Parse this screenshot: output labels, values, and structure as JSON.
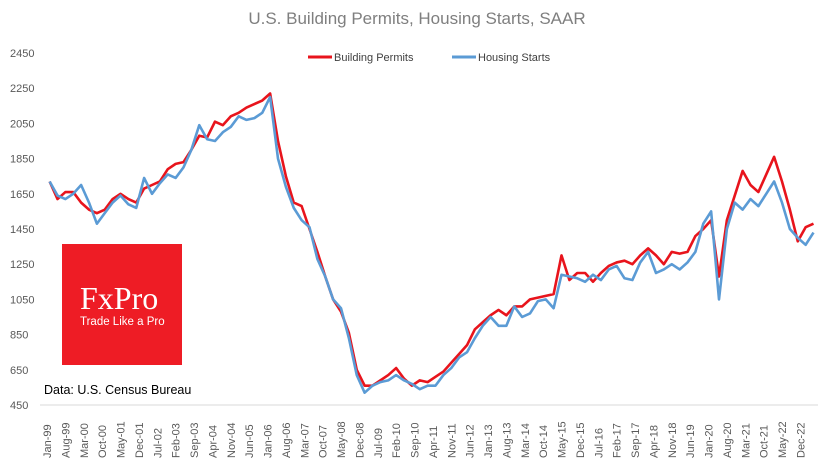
{
  "chart_data": {
    "type": "line",
    "title": "U.S. Building Permits, Housing Starts, SAAR",
    "xlabel": "",
    "ylabel": "",
    "ylim": [
      450,
      2450
    ],
    "yticks": [
      450,
      650,
      850,
      1050,
      1250,
      1450,
      1650,
      1850,
      2050,
      2250,
      2450
    ],
    "xtick_labels": [
      "Jan-99",
      "Aug-99",
      "Mar-00",
      "Oct-00",
      "May-01",
      "Dec-01",
      "Jul-02",
      "Feb-03",
      "Sep-03",
      "Apr-04",
      "Nov-04",
      "Jun-05",
      "Jan-06",
      "Aug-06",
      "Mar-07",
      "Oct-07",
      "May-08",
      "Dec-08",
      "Jul-09",
      "Feb-10",
      "Sep-10",
      "Apr-11",
      "Nov-11",
      "Jun-12",
      "Jan-13",
      "Aug-13",
      "Mar-14",
      "Oct-14",
      "May-15",
      "Dec-15",
      "Jul-16",
      "Feb-17",
      "Sep-17",
      "Apr-18",
      "Nov-18",
      "Jun-19",
      "Jan-20",
      "Aug-20",
      "Mar-21",
      "Oct-21",
      "May-22",
      "Dec-22"
    ],
    "x_start": "Jan-99",
    "x_frequency": "quarterly",
    "legend": "top-center",
    "grid": false,
    "series": [
      {
        "name": "Building Permits",
        "color": "#e8141c",
        "values": [
          1720,
          1620,
          1660,
          1660,
          1600,
          1560,
          1540,
          1560,
          1620,
          1650,
          1620,
          1600,
          1680,
          1700,
          1720,
          1790,
          1820,
          1830,
          1900,
          1980,
          1970,
          2060,
          2040,
          2090,
          2110,
          2140,
          2160,
          2180,
          2220,
          1950,
          1750,
          1600,
          1580,
          1450,
          1320,
          1180,
          1050,
          980,
          860,
          650,
          560,
          560,
          590,
          620,
          660,
          600,
          560,
          590,
          580,
          610,
          640,
          690,
          740,
          790,
          880,
          920,
          960,
          990,
          960,
          1010,
          1010,
          1050,
          1060,
          1070,
          1080,
          1300,
          1160,
          1200,
          1200,
          1150,
          1200,
          1240,
          1260,
          1270,
          1250,
          1300,
          1340,
          1300,
          1250,
          1320,
          1310,
          1320,
          1410,
          1450,
          1500,
          1180,
          1500,
          1640,
          1780,
          1700,
          1660,
          1760,
          1860,
          1720,
          1560,
          1380,
          1460,
          1480
        ]
      },
      {
        "name": "Housing Starts",
        "color": "#5b9bd5",
        "values": [
          1720,
          1640,
          1620,
          1650,
          1700,
          1600,
          1480,
          1540,
          1600,
          1640,
          1590,
          1570,
          1740,
          1650,
          1710,
          1760,
          1740,
          1800,
          1900,
          2040,
          1960,
          1950,
          2000,
          2030,
          2090,
          2070,
          2080,
          2110,
          2200,
          1850,
          1690,
          1570,
          1500,
          1460,
          1280,
          1180,
          1050,
          1000,
          830,
          620,
          520,
          560,
          580,
          590,
          620,
          590,
          570,
          540,
          560,
          560,
          620,
          660,
          720,
          750,
          830,
          900,
          950,
          900,
          900,
          1010,
          950,
          970,
          1040,
          1050,
          1000,
          1190,
          1180,
          1170,
          1150,
          1190,
          1160,
          1220,
          1240,
          1170,
          1160,
          1260,
          1320,
          1200,
          1220,
          1250,
          1220,
          1260,
          1320,
          1480,
          1550,
          1050,
          1450,
          1600,
          1560,
          1620,
          1580,
          1650,
          1720,
          1600,
          1450,
          1400,
          1360,
          1430
        ]
      }
    ]
  },
  "logo": {
    "brand": "FxPro",
    "tagline": "Trade Like a Pro"
  },
  "source": "Data: U.S. Census Bureau"
}
